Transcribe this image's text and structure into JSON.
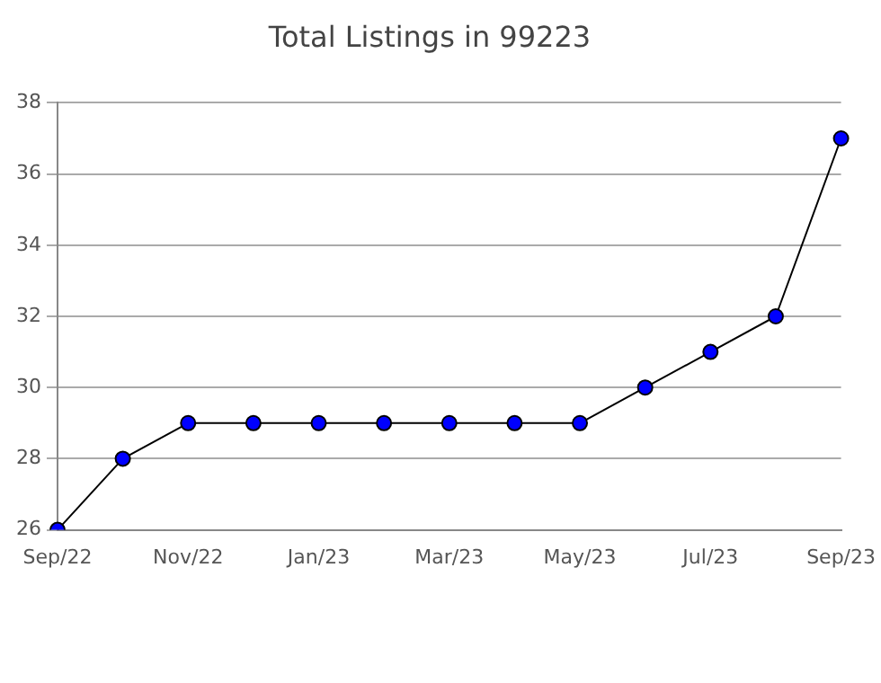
{
  "chart_data": {
    "type": "line",
    "title": "Total Listings in 99223",
    "categories": [
      "Sep/22",
      null,
      "Nov/22",
      null,
      "Jan/23",
      null,
      "Mar/23",
      null,
      "May/23",
      null,
      "Jul/23",
      null,
      "Sep/23"
    ],
    "series": [
      {
        "color": "#0000ff",
        "values": [
          26,
          28,
          29,
          29,
          29,
          29,
          29,
          29,
          29,
          30,
          31,
          32,
          37
        ]
      }
    ],
    "ylim": [
      26,
      38
    ],
    "yticks": [
      26,
      28,
      30,
      32,
      34,
      36,
      38
    ],
    "grid": "y",
    "legend": false,
    "marker": "circle",
    "line_style": "solid"
  }
}
